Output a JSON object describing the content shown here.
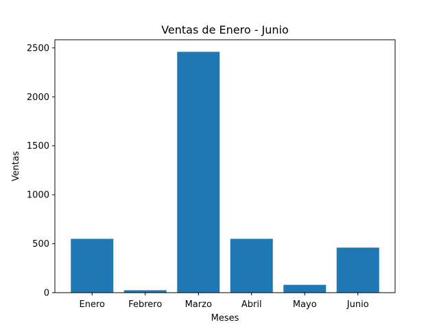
{
  "chart_data": {
    "type": "bar",
    "title": "Ventas de Enero - Junio",
    "xlabel": "Meses",
    "ylabel": "Ventas",
    "categories": [
      "Enero",
      "Febrero",
      "Marzo",
      "Abril",
      "Mayo",
      "Junio"
    ],
    "values": [
      550,
      25,
      2460,
      550,
      80,
      460
    ],
    "ylim": [
      0,
      2583
    ],
    "yticks": [
      0,
      500,
      1000,
      1500,
      2000,
      2500
    ],
    "grid": false,
    "bar_color": "#1f77b4"
  }
}
